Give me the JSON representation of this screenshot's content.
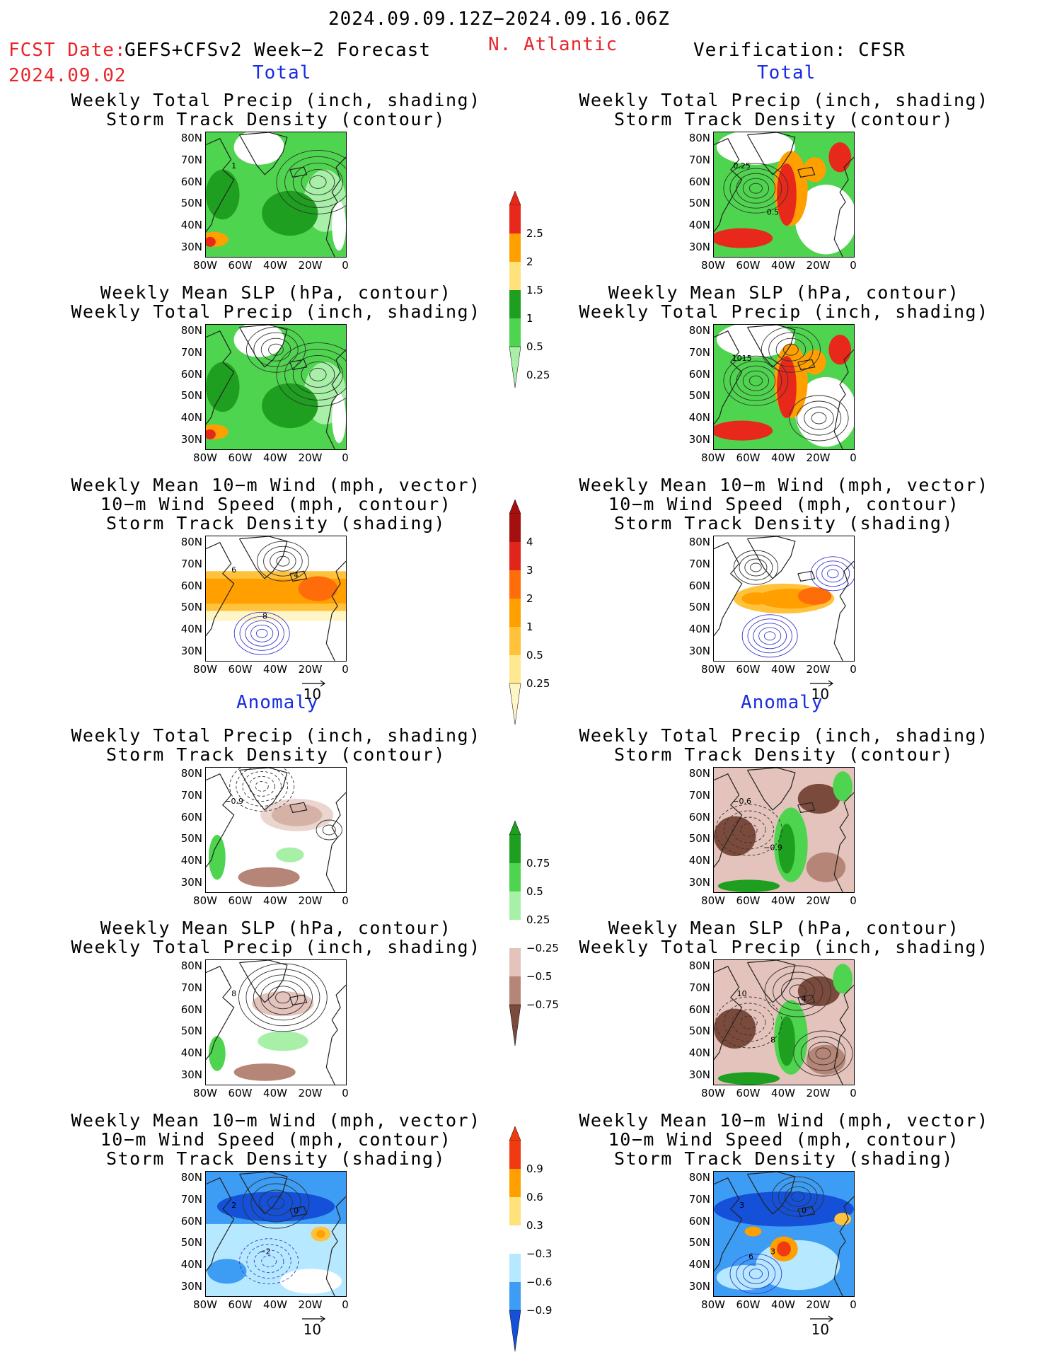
{
  "header": {
    "period": "2024.09.09.12Z−2024.09.16.06Z",
    "fcst_label": "FCST Date:",
    "fcst_model": "GEFS+CFSv2 Week−2 Forecast",
    "fcst_date": "2024.09.02",
    "region": "N. Atlantic",
    "verification": "Verification: CFSR"
  },
  "sections": {
    "total": "Total",
    "anomaly": "Anomaly"
  },
  "titles": {
    "precip_storm": [
      "Weekly Total Precip (inch, shading)",
      "Storm Track Density (contour)"
    ],
    "slp_precip": [
      "Weekly Mean SLP (hPa, contour)",
      "Weekly Total Precip (inch, shading)"
    ],
    "wind_storm": [
      "Weekly Mean 10−m Wind (mph, vector)",
      "10−m Wind Speed (mph, contour)",
      "Storm Track Density (shading)"
    ]
  },
  "axes": {
    "lat_ticks": [
      "80N",
      "70N",
      "60N",
      "50N",
      "40N",
      "30N"
    ],
    "lon_ticks": [
      "80W",
      "60W",
      "40W",
      "20W",
      "0"
    ]
  },
  "vector_ref": "10",
  "colorbars": {
    "precip_total": {
      "labels": [
        "2.5",
        "2",
        "1.5",
        "1",
        "0.5",
        "0.25"
      ],
      "colors": [
        "#e8281b",
        "#ff9f00",
        "#ffe27a",
        "#1f9f1f",
        "#4ed44e",
        "#a8f0a8"
      ]
    },
    "storm_total": {
      "labels": [
        "4",
        "3",
        "2",
        "1",
        "0.5",
        "0.25"
      ],
      "colors": [
        "#a50f0f",
        "#e0261b",
        "#ff6d0a",
        "#ff9f00",
        "#ffc23a",
        "#ffe890",
        "#fff6c8"
      ]
    },
    "precip_anom": {
      "labels": [
        "0.75",
        "0.5",
        "0.25",
        "−0.25",
        "−0.5",
        "−0.75"
      ],
      "colors": [
        "#1f9f1f",
        "#4ed44e",
        "#a8f0a8",
        "#ffffff",
        "#e3c3bb",
        "#b58677",
        "#7a4a3c"
      ]
    },
    "storm_anom": {
      "labels": [
        "0.9",
        "0.6",
        "0.3",
        "−0.3",
        "−0.6",
        "−0.9"
      ],
      "colors": [
        "#f03b12",
        "#ff9f00",
        "#ffe27a",
        "#ffffff",
        "#b6e8ff",
        "#3d9cf3",
        "#1450d8"
      ]
    }
  },
  "panel_labels": {
    "fc_precip_total": [
      "1"
    ],
    "obs_precip_total": [
      "0.25",
      "0.5"
    ],
    "obs_slp_total": [
      "1015"
    ],
    "fc_wind_total": [
      "6",
      "8",
      "4"
    ],
    "fc_precip_anom": [
      "−0.9"
    ],
    "obs_precip_anom": [
      "−0.6",
      "−0.9"
    ],
    "fc_slp_anom": [
      "8"
    ],
    "obs_slp_anom": [
      "10",
      "8",
      "4"
    ],
    "fc_wind_anom": [
      "2",
      "−2",
      "0"
    ],
    "obs_wind_anom": [
      "3",
      "3",
      "0",
      "6"
    ]
  }
}
